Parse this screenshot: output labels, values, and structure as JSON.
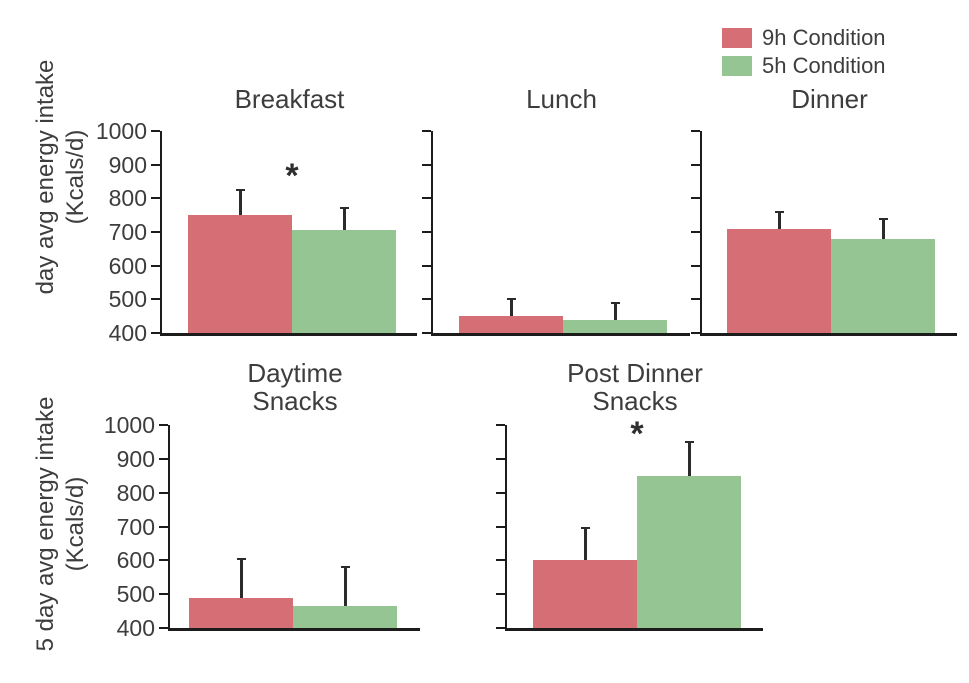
{
  "figure": {
    "background": "#ffffff",
    "text_color": "#3d3d3d",
    "axis_color": "#1c1c1c"
  },
  "legend": {
    "position": "top-right",
    "items": [
      {
        "label": "9h Condition",
        "color": "#d56f75"
      },
      {
        "label": "5h Condition",
        "color": "#96c594"
      }
    ]
  },
  "axis_labels": {
    "top_row_lines": [
      "day avg energy intake",
      "(Kcals/d)"
    ],
    "bottom_row_lines": [
      "5 day avg energy intake",
      "(Kcals/d)"
    ]
  },
  "chart_data": {
    "type": "bar",
    "unit": "Kcals/d",
    "conditions": [
      "9h Condition",
      "5h Condition"
    ],
    "colors": {
      "9h Condition": "#d56f75",
      "5h Condition": "#96c594"
    },
    "ylim": [
      400,
      1000
    ],
    "yticks": [
      400,
      500,
      600,
      700,
      800,
      900,
      1000
    ],
    "grid": false,
    "error_bars": "upper only",
    "significance_marker": "*",
    "panels": [
      {
        "title_lines": [
          "Breakfast"
        ],
        "significant": true,
        "show_tick_labels": true,
        "series": [
          {
            "name": "9h Condition",
            "value": 750,
            "error": 75
          },
          {
            "name": "5h Condition",
            "value": 705,
            "error": 65
          }
        ]
      },
      {
        "title_lines": [
          "Lunch"
        ],
        "significant": false,
        "show_tick_labels": false,
        "series": [
          {
            "name": "9h Condition",
            "value": 450,
            "error": 50
          },
          {
            "name": "5h Condition",
            "value": 440,
            "error": 50
          }
        ]
      },
      {
        "title_lines": [
          "Dinner"
        ],
        "significant": false,
        "show_tick_labels": false,
        "series": [
          {
            "name": "9h Condition",
            "value": 710,
            "error": 50
          },
          {
            "name": "5h Condition",
            "value": 680,
            "error": 60
          }
        ]
      },
      {
        "title_lines": [
          "Daytime",
          "Snacks"
        ],
        "significant": false,
        "show_tick_labels": true,
        "series": [
          {
            "name": "9h Condition",
            "value": 490,
            "error": 115
          },
          {
            "name": "5h Condition",
            "value": 465,
            "error": 115
          }
        ]
      },
      {
        "title_lines": [
          "Post Dinner",
          "Snacks"
        ],
        "significant": true,
        "show_tick_labels": false,
        "series": [
          {
            "name": "9h Condition",
            "value": 600,
            "error": 95
          },
          {
            "name": "5h Condition",
            "value": 850,
            "error": 100
          }
        ]
      }
    ]
  }
}
